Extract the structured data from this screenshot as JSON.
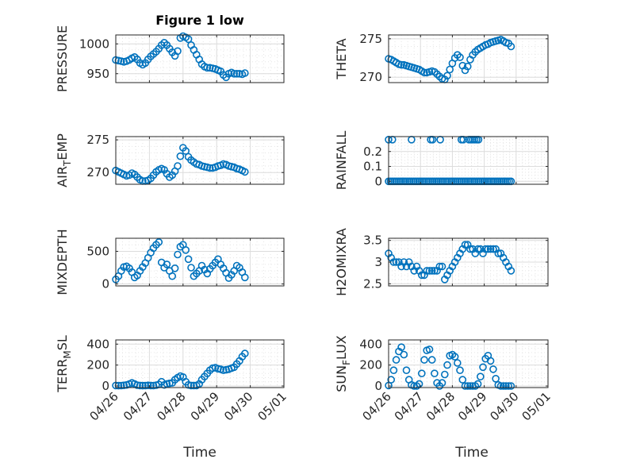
{
  "figure": {
    "title": "Figure 1 low",
    "xlabel": "Time"
  },
  "colors": {
    "marker": "#0072BD",
    "axis": "#262626",
    "grid": "#dcdcdc",
    "background": "#ffffff"
  },
  "chart_data": [
    {
      "type": "scatter",
      "marker": "circle",
      "ylabel": "PRESSURE",
      "ylim": [
        935,
        1015
      ],
      "yticks": [
        950,
        1000
      ],
      "ytick_labels": [
        "950",
        "1000"
      ],
      "xlim": [
        0,
        5
      ],
      "xtick_labels": [
        "04/26",
        "04/27",
        "04/28",
        "04/29",
        "04/30",
        "05/01"
      ],
      "grid": true,
      "minor_grid": true,
      "x": [
        0.0,
        0.08,
        0.16,
        0.24,
        0.32,
        0.4,
        0.48,
        0.56,
        0.64,
        0.72,
        0.8,
        0.88,
        0.96,
        1.04,
        1.12,
        1.2,
        1.28,
        1.36,
        1.44,
        1.52,
        1.6,
        1.68,
        1.76,
        1.84,
        1.92,
        2.0,
        2.08,
        2.16,
        2.24,
        2.32,
        2.4,
        2.48,
        2.56,
        2.64,
        2.72,
        2.8,
        2.88,
        2.96,
        3.04,
        3.12,
        3.2,
        3.28,
        3.36,
        3.44,
        3.52,
        3.6,
        3.68,
        3.76,
        3.84
      ],
      "y": [
        973,
        972,
        971,
        970,
        971,
        973,
        976,
        978,
        974,
        968,
        965,
        968,
        974,
        979,
        983,
        987,
        992,
        998,
        1002,
        998,
        992,
        986,
        980,
        988,
        1010,
        1013,
        1011,
        1008,
        998,
        990,
        982,
        974,
        966,
        962,
        960,
        960,
        959,
        958,
        956,
        954,
        948,
        944,
        950,
        952,
        950,
        950,
        950,
        949,
        951
      ]
    },
    {
      "type": "scatter",
      "marker": "circle",
      "ylabel": "THETA",
      "ylim": [
        269.3,
        275.5
      ],
      "yticks": [
        270,
        275
      ],
      "ytick_labels": [
        "270",
        "275"
      ],
      "xlim": [
        0,
        5
      ],
      "xtick_labels": [
        "04/26",
        "04/27",
        "04/28",
        "04/29",
        "04/30",
        "05/01"
      ],
      "grid": true,
      "minor_grid": true,
      "x": [
        0.0,
        0.08,
        0.16,
        0.24,
        0.32,
        0.4,
        0.48,
        0.56,
        0.64,
        0.72,
        0.8,
        0.88,
        0.96,
        1.04,
        1.12,
        1.2,
        1.28,
        1.36,
        1.44,
        1.52,
        1.6,
        1.68,
        1.76,
        1.84,
        1.92,
        2.0,
        2.08,
        2.16,
        2.24,
        2.32,
        2.4,
        2.48,
        2.56,
        2.64,
        2.72,
        2.8,
        2.88,
        2.96,
        3.04,
        3.12,
        3.2,
        3.28,
        3.36,
        3.44,
        3.52,
        3.6,
        3.68,
        3.76,
        3.84
      ],
      "y": [
        272.4,
        272.3,
        272.1,
        271.9,
        271.7,
        271.6,
        271.6,
        271.5,
        271.4,
        271.3,
        271.2,
        271.1,
        271.0,
        270.8,
        270.6,
        270.6,
        270.7,
        270.8,
        270.7,
        270.4,
        270.1,
        269.8,
        269.7,
        270.2,
        271.0,
        271.8,
        272.5,
        272.9,
        272.6,
        271.5,
        270.9,
        271.4,
        272.3,
        272.9,
        273.3,
        273.6,
        273.8,
        274.0,
        274.2,
        274.3,
        274.5,
        274.6,
        274.7,
        274.8,
        274.9,
        274.7,
        274.5,
        274.4,
        274.0
      ]
    },
    {
      "type": "scatter",
      "marker": "circle",
      "ylabel": "AIR_TEMP",
      "ylim": [
        268.2,
        275.5
      ],
      "yticks": [
        270,
        275
      ],
      "ytick_labels": [
        "270",
        "275"
      ],
      "xlim": [
        0,
        5
      ],
      "xtick_labels": [
        "04/26",
        "04/27",
        "04/28",
        "04/29",
        "04/30",
        "05/01"
      ],
      "grid": true,
      "minor_grid": true,
      "x": [
        0.0,
        0.08,
        0.16,
        0.24,
        0.32,
        0.4,
        0.48,
        0.56,
        0.64,
        0.72,
        0.8,
        0.88,
        0.96,
        1.04,
        1.12,
        1.2,
        1.28,
        1.36,
        1.44,
        1.52,
        1.6,
        1.68,
        1.76,
        1.84,
        1.92,
        2.0,
        2.08,
        2.16,
        2.24,
        2.32,
        2.4,
        2.48,
        2.56,
        2.64,
        2.72,
        2.8,
        2.88,
        2.96,
        3.04,
        3.12,
        3.2,
        3.28,
        3.36,
        3.44,
        3.52,
        3.6,
        3.68,
        3.76,
        3.84
      ],
      "y": [
        270.3,
        270.1,
        269.9,
        269.7,
        269.5,
        269.6,
        269.9,
        269.7,
        269.3,
        268.9,
        268.7,
        268.7,
        268.8,
        269.1,
        269.6,
        270.1,
        270.4,
        270.6,
        270.4,
        269.8,
        269.3,
        269.6,
        270.2,
        271.0,
        272.5,
        273.8,
        273.3,
        272.4,
        271.9,
        271.6,
        271.3,
        271.2,
        271.0,
        270.9,
        270.8,
        270.7,
        270.7,
        270.8,
        271.0,
        271.1,
        271.3,
        271.2,
        271.0,
        270.9,
        270.8,
        270.6,
        270.5,
        270.3,
        270.1
      ]
    },
    {
      "type": "scatter",
      "marker": "circle",
      "ylabel": "RAINFALL",
      "ylim": [
        -0.02,
        0.3
      ],
      "yticks": [
        0,
        0.1,
        0.2
      ],
      "ytick_labels": [
        "0",
        "0.1",
        "0.2"
      ],
      "xlim": [
        0,
        5
      ],
      "xtick_labels": [
        "04/26",
        "04/27",
        "04/28",
        "04/29",
        "04/30",
        "05/01"
      ],
      "grid": true,
      "minor_grid": true,
      "x": [
        0.0,
        0.06,
        0.12,
        0.18,
        0.24,
        0.3,
        0.36,
        0.42,
        0.48,
        0.54,
        0.6,
        0.66,
        0.72,
        0.78,
        0.84,
        0.9,
        0.96,
        1.02,
        1.08,
        1.14,
        1.2,
        1.26,
        1.32,
        1.38,
        1.44,
        1.5,
        1.56,
        1.62,
        1.68,
        1.74,
        1.8,
        1.86,
        1.92,
        1.98,
        2.04,
        2.1,
        2.16,
        2.22,
        2.28,
        2.34,
        2.4,
        2.46,
        2.52,
        2.58,
        2.64,
        2.7,
        2.76,
        2.82,
        2.88,
        2.94,
        3.0,
        3.06,
        3.12,
        3.18,
        3.24,
        3.3,
        3.36,
        3.42,
        3.48,
        3.54,
        3.6,
        3.66,
        3.72,
        3.78,
        3.84,
        0.0,
        0.12,
        0.72,
        1.32,
        1.38,
        1.62,
        2.28,
        2.34,
        2.52,
        2.58,
        2.64,
        2.7,
        2.76,
        2.82
      ],
      "y": [
        0,
        0,
        0,
        0,
        0,
        0,
        0,
        0,
        0,
        0,
        0,
        0,
        0,
        0,
        0,
        0,
        0,
        0,
        0,
        0,
        0,
        0,
        0,
        0,
        0,
        0,
        0,
        0,
        0,
        0,
        0,
        0,
        0,
        0,
        0,
        0,
        0,
        0,
        0,
        0,
        0,
        0,
        0,
        0,
        0,
        0,
        0,
        0,
        0,
        0,
        0,
        0,
        0,
        0,
        0,
        0,
        0,
        0,
        0,
        0,
        0,
        0,
        0,
        0,
        0,
        0.28,
        0.28,
        0.28,
        0.28,
        0.28,
        0.28,
        0.28,
        0.28,
        0.28,
        0.28,
        0.28,
        0.28,
        0.28,
        0.28
      ]
    },
    {
      "type": "scatter",
      "marker": "circle",
      "ylabel": "MIXDEPTH",
      "ylim": [
        -30,
        700
      ],
      "yticks": [
        0,
        500
      ],
      "ytick_labels": [
        "0",
        "500"
      ],
      "xlim": [
        0,
        5
      ],
      "xtick_labels": [
        "04/26",
        "04/27",
        "04/28",
        "04/29",
        "04/30",
        "05/01"
      ],
      "grid": true,
      "minor_grid": true,
      "x": [
        0.0,
        0.08,
        0.16,
        0.24,
        0.32,
        0.4,
        0.48,
        0.56,
        0.64,
        0.72,
        0.8,
        0.88,
        0.96,
        1.04,
        1.12,
        1.2,
        1.28,
        1.36,
        1.44,
        1.52,
        1.6,
        1.68,
        1.76,
        1.84,
        1.92,
        2.0,
        2.08,
        2.16,
        2.24,
        2.32,
        2.4,
        2.48,
        2.56,
        2.64,
        2.72,
        2.8,
        2.88,
        2.96,
        3.04,
        3.12,
        3.2,
        3.28,
        3.36,
        3.44,
        3.52,
        3.6,
        3.68,
        3.76,
        3.84
      ],
      "y": [
        70,
        120,
        200,
        260,
        270,
        240,
        180,
        100,
        130,
        200,
        260,
        320,
        400,
        480,
        550,
        600,
        640,
        330,
        250,
        300,
        200,
        120,
        240,
        450,
        570,
        600,
        520,
        380,
        250,
        120,
        160,
        200,
        280,
        220,
        160,
        230,
        280,
        330,
        380,
        300,
        240,
        170,
        90,
        140,
        200,
        280,
        250,
        180,
        100
      ]
    },
    {
      "type": "scatter",
      "marker": "circle",
      "ylabel": "H2OMIXRA",
      "ylim": [
        2.45,
        3.55
      ],
      "yticks": [
        2.5,
        3,
        3.5
      ],
      "ytick_labels": [
        "2.5",
        "3",
        "3.5"
      ],
      "xlim": [
        0,
        5
      ],
      "xtick_labels": [
        "04/26",
        "04/27",
        "04/28",
        "04/29",
        "04/30",
        "05/01"
      ],
      "grid": true,
      "minor_grid": true,
      "x": [
        0.0,
        0.08,
        0.16,
        0.24,
        0.32,
        0.4,
        0.48,
        0.56,
        0.64,
        0.72,
        0.8,
        0.88,
        0.96,
        1.04,
        1.12,
        1.2,
        1.28,
        1.36,
        1.44,
        1.52,
        1.6,
        1.68,
        1.76,
        1.84,
        1.92,
        2.0,
        2.08,
        2.16,
        2.24,
        2.32,
        2.4,
        2.48,
        2.56,
        2.64,
        2.72,
        2.8,
        2.88,
        2.96,
        3.04,
        3.12,
        3.2,
        3.28,
        3.36,
        3.44,
        3.52,
        3.6,
        3.68,
        3.76,
        3.84
      ],
      "y": [
        3.2,
        3.1,
        3.0,
        3.0,
        3.0,
        2.9,
        3.0,
        2.9,
        3.0,
        2.9,
        2.8,
        2.9,
        2.8,
        2.7,
        2.7,
        2.8,
        2.8,
        2.8,
        2.8,
        2.8,
        2.9,
        2.9,
        2.6,
        2.7,
        2.8,
        2.9,
        3.0,
        3.1,
        3.2,
        3.3,
        3.4,
        3.4,
        3.3,
        3.3,
        3.2,
        3.3,
        3.3,
        3.2,
        3.3,
        3.3,
        3.3,
        3.3,
        3.3,
        3.2,
        3.2,
        3.1,
        3.0,
        2.9,
        2.8
      ]
    },
    {
      "type": "scatter",
      "marker": "circle",
      "ylabel": "TERR_MSL",
      "ylim": [
        -15,
        440
      ],
      "yticks": [
        0,
        200,
        400
      ],
      "ytick_labels": [
        "0",
        "200",
        "400"
      ],
      "xlim": [
        0,
        5
      ],
      "xtick_labels": [
        "04/26",
        "04/27",
        "04/28",
        "04/29",
        "04/30",
        "05/01"
      ],
      "grid": true,
      "minor_grid": true,
      "x": [
        0.0,
        0.08,
        0.16,
        0.24,
        0.32,
        0.4,
        0.48,
        0.56,
        0.64,
        0.72,
        0.8,
        0.88,
        0.96,
        1.04,
        1.12,
        1.2,
        1.28,
        1.36,
        1.44,
        1.52,
        1.6,
        1.68,
        1.76,
        1.84,
        1.92,
        2.0,
        2.08,
        2.16,
        2.24,
        2.32,
        2.4,
        2.48,
        2.56,
        2.64,
        2.72,
        2.8,
        2.88,
        2.96,
        3.04,
        3.12,
        3.2,
        3.28,
        3.36,
        3.44,
        3.52,
        3.6,
        3.68,
        3.76,
        3.84
      ],
      "y": [
        5,
        3,
        4,
        6,
        10,
        18,
        30,
        20,
        8,
        5,
        3,
        4,
        6,
        5,
        4,
        8,
        15,
        40,
        10,
        20,
        25,
        30,
        60,
        80,
        95,
        85,
        40,
        10,
        5,
        5,
        5,
        20,
        60,
        90,
        120,
        150,
        170,
        175,
        165,
        160,
        150,
        155,
        160,
        170,
        180,
        210,
        240,
        280,
        310
      ]
    },
    {
      "type": "scatter",
      "marker": "circle",
      "ylabel": "SUN_FLUX",
      "ylim": [
        -15,
        440
      ],
      "yticks": [
        0,
        200,
        400
      ],
      "ytick_labels": [
        "0",
        "200",
        "400"
      ],
      "xlim": [
        0,
        5
      ],
      "xtick_labels": [
        "04/26",
        "04/27",
        "04/28",
        "04/29",
        "04/30",
        "05/01"
      ],
      "grid": true,
      "minor_grid": true,
      "x": [
        0.0,
        0.08,
        0.16,
        0.24,
        0.32,
        0.4,
        0.48,
        0.56,
        0.64,
        0.72,
        0.8,
        0.88,
        0.96,
        1.04,
        1.12,
        1.2,
        1.28,
        1.36,
        1.44,
        1.52,
        1.6,
        1.68,
        1.76,
        1.84,
        1.92,
        2.0,
        2.08,
        2.16,
        2.24,
        2.32,
        2.4,
        2.48,
        2.56,
        2.64,
        2.72,
        2.8,
        2.88,
        2.96,
        3.04,
        3.12,
        3.2,
        3.28,
        3.36,
        3.44,
        3.52,
        3.6,
        3.68,
        3.76,
        3.84
      ],
      "y": [
        5,
        60,
        150,
        250,
        330,
        370,
        300,
        150,
        60,
        10,
        0,
        0,
        20,
        120,
        250,
        340,
        350,
        250,
        120,
        30,
        0,
        30,
        110,
        200,
        290,
        300,
        280,
        220,
        150,
        60,
        0,
        0,
        0,
        0,
        0,
        20,
        90,
        180,
        260,
        290,
        240,
        160,
        70,
        10,
        0,
        0,
        0,
        0,
        0
      ]
    }
  ]
}
